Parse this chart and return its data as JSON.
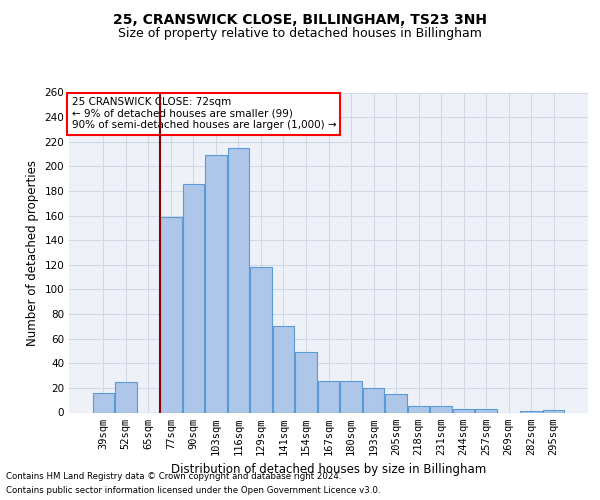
{
  "title": "25, CRANSWICK CLOSE, BILLINGHAM, TS23 3NH",
  "subtitle": "Size of property relative to detached houses in Billingham",
  "xlabel": "Distribution of detached houses by size in Billingham",
  "ylabel": "Number of detached properties",
  "categories": [
    "39sqm",
    "52sqm",
    "65sqm",
    "77sqm",
    "90sqm",
    "103sqm",
    "116sqm",
    "129sqm",
    "141sqm",
    "154sqm",
    "167sqm",
    "180sqm",
    "193sqm",
    "205sqm",
    "218sqm",
    "231sqm",
    "244sqm",
    "257sqm",
    "269sqm",
    "282sqm",
    "295sqm"
  ],
  "values": [
    16,
    25,
    0,
    159,
    186,
    209,
    215,
    118,
    70,
    49,
    26,
    26,
    20,
    15,
    5,
    5,
    3,
    3,
    0,
    1,
    2
  ],
  "bar_color": "#aec6e8",
  "bar_edge_color": "#5b9bd5",
  "grid_color": "#d0d8e8",
  "background_color": "#eef2f8",
  "red_line_x": 2.5,
  "annotation_box": {
    "text_line1": "25 CRANSWICK CLOSE: 72sqm",
    "text_line2": "← 9% of detached houses are smaller (99)",
    "text_line3": "90% of semi-detached houses are larger (1,000) →"
  },
  "ylim": [
    0,
    260
  ],
  "yticks": [
    0,
    20,
    40,
    60,
    80,
    100,
    120,
    140,
    160,
    180,
    200,
    220,
    240,
    260
  ],
  "footnote1": "Contains HM Land Registry data © Crown copyright and database right 2024.",
  "footnote2": "Contains public sector information licensed under the Open Government Licence v3.0.",
  "title_fontsize": 10,
  "subtitle_fontsize": 9,
  "ylabel_fontsize": 8.5,
  "xlabel_fontsize": 8.5,
  "tick_fontsize": 7.5,
  "footnote_fontsize": 6.2,
  "annot_fontsize": 7.5
}
